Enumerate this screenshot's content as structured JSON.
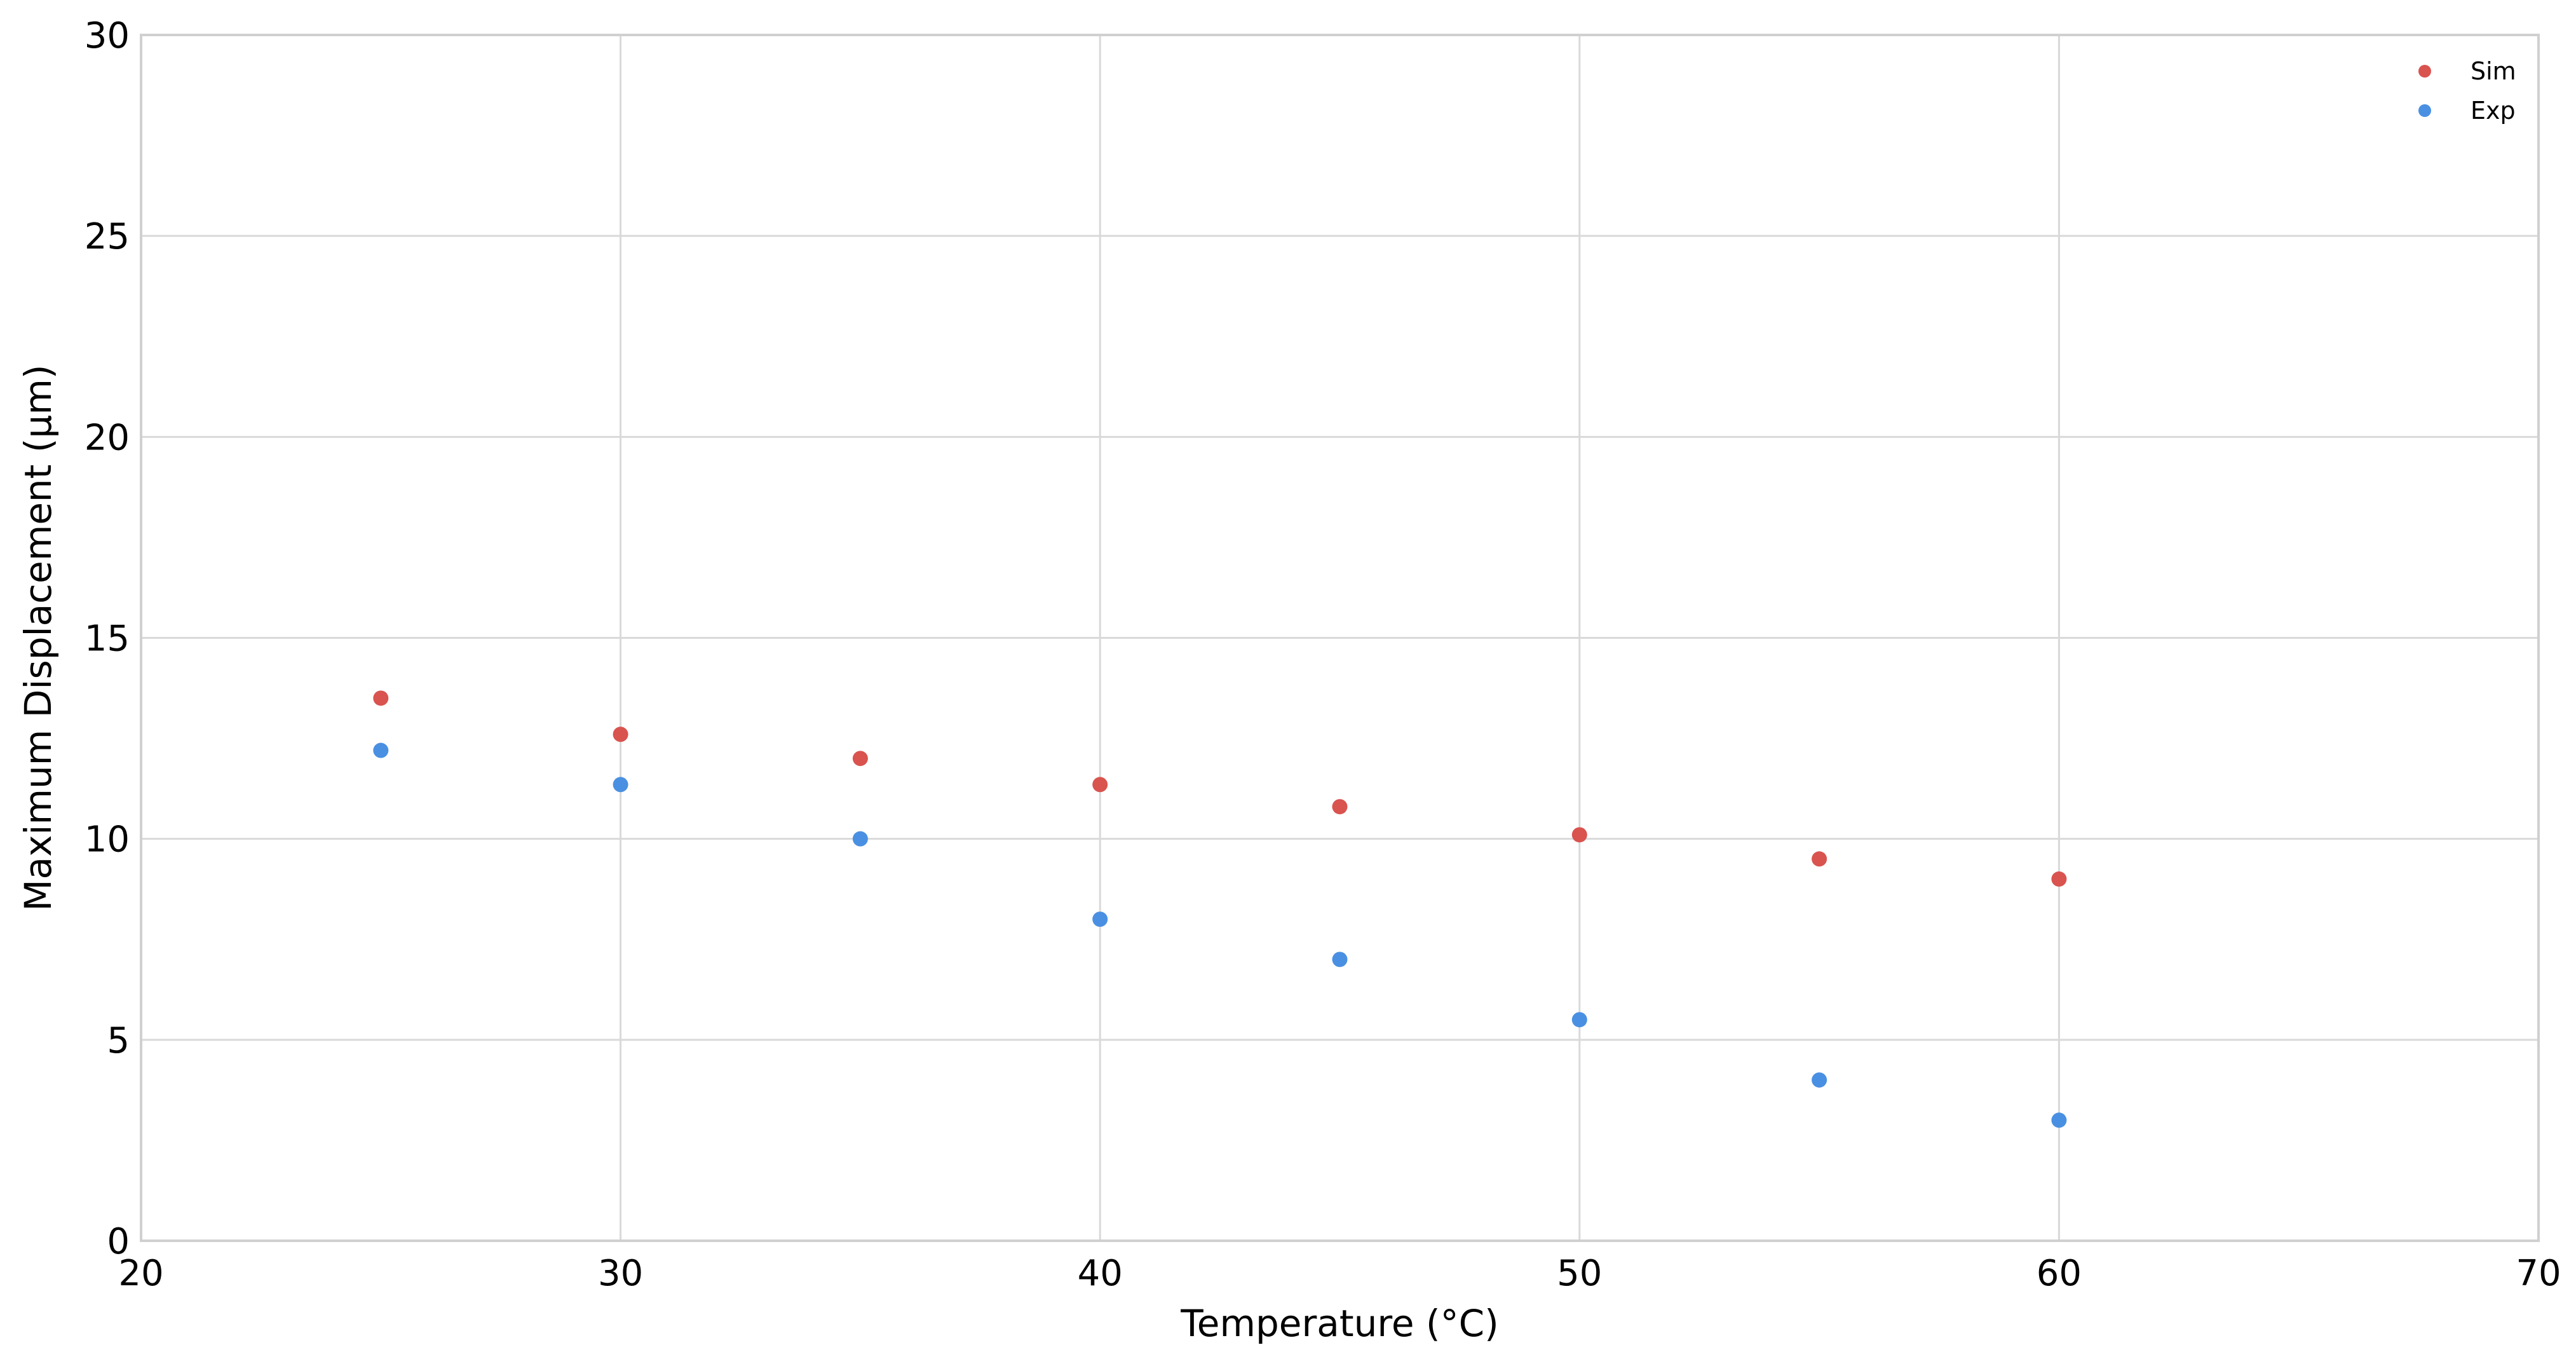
{
  "chart_data": {
    "type": "scatter",
    "title": "",
    "xlabel": "Temperature (°C)",
    "ylabel": "Maximum Displacement (μm)",
    "xlim": [
      20,
      70
    ],
    "ylim": [
      0,
      30
    ],
    "xticks": [
      20,
      30,
      40,
      50,
      60,
      70
    ],
    "yticks": [
      0,
      5,
      10,
      15,
      20,
      25,
      30
    ],
    "grid": true,
    "legend_position": "top-right",
    "series": [
      {
        "name": "Sim",
        "color": "#d9534f",
        "x": [
          25,
          30,
          35,
          40,
          45,
          50,
          55,
          60
        ],
        "y": [
          13.5,
          12.6,
          12.0,
          11.35,
          10.8,
          10.1,
          9.5,
          9.0
        ]
      },
      {
        "name": "Exp",
        "color": "#4a90e2",
        "x": [
          25,
          30,
          35,
          40,
          45,
          50,
          55,
          60
        ],
        "y": [
          12.2,
          11.35,
          10.0,
          8.0,
          7.0,
          5.5,
          4.0,
          3.0
        ]
      }
    ]
  }
}
